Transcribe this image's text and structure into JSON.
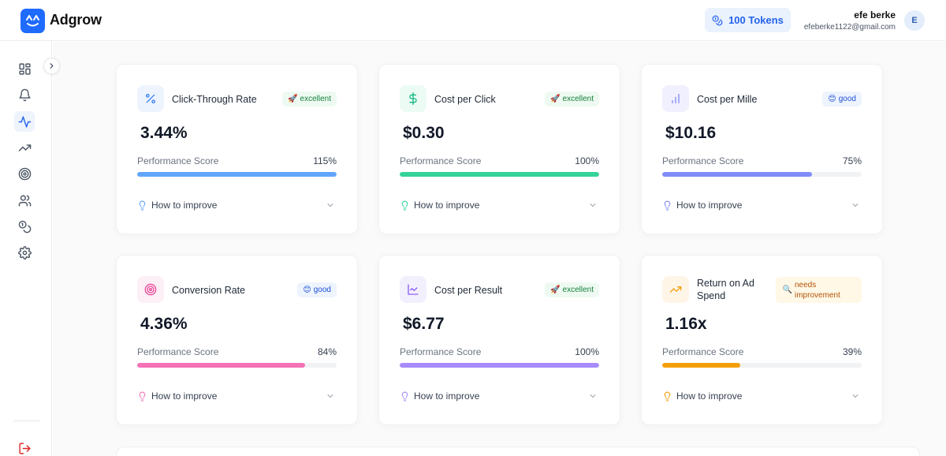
{
  "header": {
    "brand": "Adgrow",
    "tokens_label": "100 Tokens",
    "user_name": "efe berke",
    "user_email": "efeberke1122@gmail.com",
    "avatar_initial": "E"
  },
  "sidebar": {
    "items": [
      {
        "name": "dashboard",
        "icon": "grid-icon"
      },
      {
        "name": "notifications",
        "icon": "bell-icon"
      },
      {
        "name": "analytics",
        "icon": "activity-icon",
        "active": true
      },
      {
        "name": "trends",
        "icon": "trending-up-icon"
      },
      {
        "name": "targets",
        "icon": "target-icon"
      },
      {
        "name": "audience",
        "icon": "users-icon"
      },
      {
        "name": "tokens",
        "icon": "coins-icon"
      },
      {
        "name": "settings",
        "icon": "gear-icon"
      }
    ],
    "logout_icon": "logout-icon"
  },
  "metrics": [
    {
      "title": "Click-Through Rate",
      "value": "3.44%",
      "badge": "excellent",
      "badge_emoji": "🚀",
      "perf_label": "Performance Score",
      "perf_pct": "115%",
      "score": 1.0,
      "color": "#60a5fa",
      "icon": "percent-icon",
      "improve": "How to improve"
    },
    {
      "title": "Cost per Click",
      "value": "$0.30",
      "badge": "excellent",
      "badge_emoji": "🚀",
      "perf_label": "Performance Score",
      "perf_pct": "100%",
      "score": 1.0,
      "color": "#34d399",
      "icon": "dollar-icon",
      "improve": "How to improve"
    },
    {
      "title": "Cost per Mille",
      "value": "$10.16",
      "badge": "good",
      "badge_emoji": "😊",
      "perf_label": "Performance Score",
      "perf_pct": "75%",
      "score": 0.75,
      "color": "#818cf8",
      "icon": "bar-chart-icon",
      "improve": "How to improve"
    },
    {
      "title": "Conversion Rate",
      "value": "4.36%",
      "badge": "good",
      "badge_emoji": "😊",
      "perf_label": "Performance Score",
      "perf_pct": "84%",
      "score": 0.84,
      "color": "#f472b6",
      "icon": "target-icon",
      "improve": "How to improve"
    },
    {
      "title": "Cost per Result",
      "value": "$6.77",
      "badge": "excellent",
      "badge_emoji": "🚀",
      "perf_label": "Performance Score",
      "perf_pct": "100%",
      "score": 1.0,
      "color": "#a78bfa",
      "icon": "line-chart-icon",
      "improve": "How to improve"
    },
    {
      "title": "Return on Ad Spend",
      "value": "1.16x",
      "badge": "needs improvement",
      "badge_emoji": "🔍",
      "perf_label": "Performance Score",
      "perf_pct": "39%",
      "score": 0.39,
      "color": "#f59e0b",
      "icon": "trending-up-icon",
      "improve": "How to improve"
    }
  ]
}
